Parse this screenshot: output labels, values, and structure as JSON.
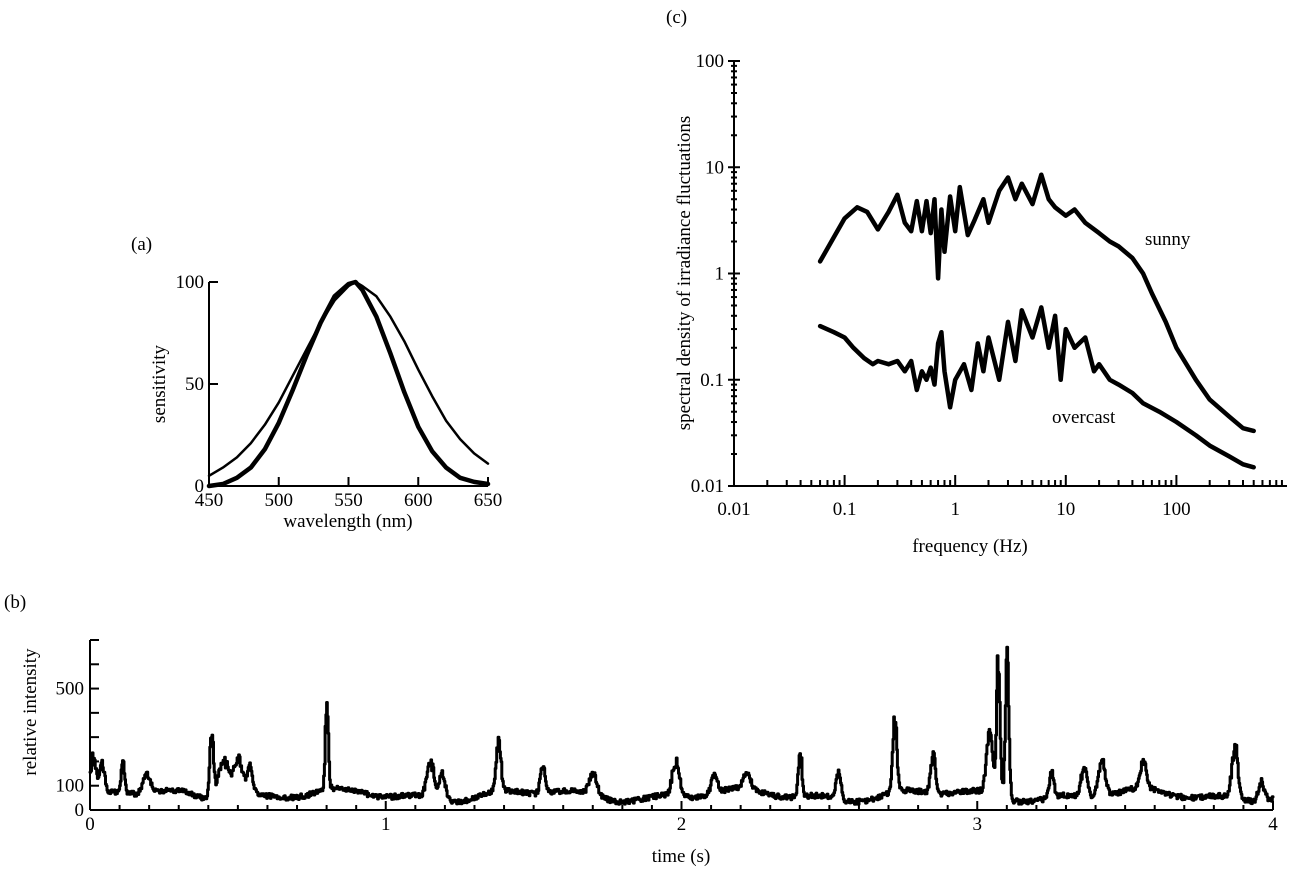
{
  "chart_data": [
    {
      "panel": "(a)",
      "type": "line",
      "xlabel": "wavelength (nm)",
      "ylabel": "sensitivity",
      "xlim": [
        450,
        650
      ],
      "ylim": [
        0,
        100
      ],
      "x_ticks": [
        "450",
        "500",
        "550",
        "600",
        "650"
      ],
      "y_ticks": [
        "0",
        "50",
        "100"
      ],
      "x": [
        450,
        460,
        470,
        480,
        490,
        500,
        510,
        520,
        530,
        540,
        550,
        555,
        560,
        570,
        580,
        590,
        600,
        610,
        620,
        630,
        640,
        650
      ],
      "series": [
        {
          "style": "thin",
          "values": [
            5,
            9,
            14,
            21,
            30,
            41,
            54,
            67,
            80,
            91,
            98,
            100,
            98,
            93,
            83,
            71,
            57,
            44,
            32,
            23,
            16,
            11
          ]
        },
        {
          "style": "thick",
          "values": [
            0,
            1,
            4,
            9,
            18,
            31,
            47,
            64,
            80,
            93,
            99,
            100,
            96,
            83,
            65,
            46,
            29,
            17,
            9,
            4,
            2,
            1
          ]
        }
      ]
    },
    {
      "panel": "(b)",
      "type": "line",
      "xlabel": "time (s)",
      "ylabel": "relative intensity",
      "xlim": [
        0,
        4
      ],
      "ylim": [
        0,
        700
      ],
      "x_ticks": [
        "0",
        "1",
        "2",
        "3",
        "4"
      ],
      "y_ticks": [
        "0",
        "100",
        "500"
      ],
      "peaks": [
        {
          "t": 0.01,
          "v": 160,
          "w": 0.01
        },
        {
          "t": 0.04,
          "v": 130,
          "w": 0.008
        },
        {
          "t": 0.11,
          "v": 150,
          "w": 0.006
        },
        {
          "t": 0.19,
          "v": 90,
          "w": 0.012
        },
        {
          "t": 0.41,
          "v": 290,
          "w": 0.006
        },
        {
          "t": 0.45,
          "v": 190,
          "w": 0.02
        },
        {
          "t": 0.5,
          "v": 180,
          "w": 0.015
        },
        {
          "t": 0.54,
          "v": 140,
          "w": 0.01
        },
        {
          "t": 0.8,
          "v": 420,
          "w": 0.005
        },
        {
          "t": 1.15,
          "v": 170,
          "w": 0.012
        },
        {
          "t": 1.19,
          "v": 130,
          "w": 0.01
        },
        {
          "t": 1.38,
          "v": 250,
          "w": 0.008
        },
        {
          "t": 1.53,
          "v": 140,
          "w": 0.008
        },
        {
          "t": 1.7,
          "v": 100,
          "w": 0.012
        },
        {
          "t": 1.98,
          "v": 160,
          "w": 0.012
        },
        {
          "t": 2.11,
          "v": 90,
          "w": 0.01
        },
        {
          "t": 2.22,
          "v": 80,
          "w": 0.012
        },
        {
          "t": 2.4,
          "v": 220,
          "w": 0.006
        },
        {
          "t": 2.53,
          "v": 120,
          "w": 0.008
        },
        {
          "t": 2.72,
          "v": 330,
          "w": 0.007
        },
        {
          "t": 2.85,
          "v": 180,
          "w": 0.008
        },
        {
          "t": 3.04,
          "v": 300,
          "w": 0.01
        },
        {
          "t": 3.07,
          "v": 640,
          "w": 0.006
        },
        {
          "t": 3.1,
          "v": 650,
          "w": 0.006
        },
        {
          "t": 3.25,
          "v": 110,
          "w": 0.008
        },
        {
          "t": 3.36,
          "v": 140,
          "w": 0.01
        },
        {
          "t": 3.42,
          "v": 160,
          "w": 0.012
        },
        {
          "t": 3.56,
          "v": 130,
          "w": 0.01
        },
        {
          "t": 3.87,
          "v": 240,
          "w": 0.01
        },
        {
          "t": 3.96,
          "v": 90,
          "w": 0.01
        }
      ]
    },
    {
      "panel": "(c)",
      "type": "line",
      "xlabel": "frequency (Hz)",
      "ylabel": "spectral density of irradiance fluctuations",
      "xscale": "log",
      "yscale": "log",
      "xlim": [
        0.01,
        1000
      ],
      "ylim": [
        0.01,
        100
      ],
      "x_ticks": [
        "0.01",
        "0.1",
        "1",
        "10",
        "100"
      ],
      "y_ticks": [
        "0.01",
        "0.1",
        "1",
        "10",
        "100"
      ],
      "series": [
        {
          "name": "sunny",
          "x": [
            0.06,
            0.08,
            0.1,
            0.13,
            0.16,
            0.2,
            0.25,
            0.3,
            0.35,
            0.4,
            0.45,
            0.5,
            0.55,
            0.6,
            0.65,
            0.7,
            0.75,
            0.8,
            0.9,
            1.0,
            1.1,
            1.3,
            1.5,
            1.8,
            2.0,
            2.5,
            3.0,
            3.5,
            4.0,
            5.0,
            6.0,
            7.0,
            8.0,
            10,
            12,
            15,
            20,
            25,
            30,
            40,
            50,
            60,
            80,
            100,
            150,
            200,
            300,
            400,
            500
          ],
          "values": [
            1.3,
            2.2,
            3.3,
            4.2,
            3.8,
            2.6,
            3.8,
            5.5,
            3.0,
            2.5,
            4.8,
            2.5,
            4.8,
            2.4,
            5.0,
            0.9,
            4.0,
            1.6,
            5.3,
            2.5,
            6.5,
            2.3,
            3.2,
            5.0,
            3.0,
            6.0,
            8.0,
            5.0,
            7.0,
            4.5,
            8.5,
            5.0,
            4.2,
            3.5,
            4.0,
            3.0,
            2.4,
            2.0,
            1.8,
            1.4,
            1.0,
            0.65,
            0.35,
            0.2,
            0.1,
            0.065,
            0.045,
            0.035,
            0.033
          ]
        },
        {
          "name": "overcast",
          "x": [
            0.06,
            0.08,
            0.1,
            0.12,
            0.15,
            0.18,
            0.2,
            0.25,
            0.3,
            0.35,
            0.4,
            0.45,
            0.5,
            0.55,
            0.6,
            0.65,
            0.7,
            0.75,
            0.8,
            0.9,
            1.0,
            1.2,
            1.4,
            1.6,
            1.8,
            2.0,
            2.5,
            3.0,
            3.5,
            4.0,
            5.0,
            6.0,
            7.0,
            8.0,
            9.0,
            10,
            12,
            15,
            18,
            20,
            25,
            30,
            40,
            50,
            70,
            100,
            150,
            200,
            300,
            400,
            500
          ],
          "values": [
            0.32,
            0.28,
            0.25,
            0.2,
            0.16,
            0.14,
            0.15,
            0.14,
            0.15,
            0.12,
            0.15,
            0.08,
            0.12,
            0.1,
            0.13,
            0.09,
            0.22,
            0.28,
            0.12,
            0.055,
            0.1,
            0.14,
            0.08,
            0.22,
            0.12,
            0.25,
            0.1,
            0.35,
            0.15,
            0.45,
            0.25,
            0.48,
            0.2,
            0.4,
            0.1,
            0.3,
            0.2,
            0.25,
            0.12,
            0.14,
            0.1,
            0.09,
            0.075,
            0.06,
            0.05,
            0.04,
            0.03,
            0.024,
            0.019,
            0.016,
            0.015
          ]
        }
      ]
    }
  ]
}
